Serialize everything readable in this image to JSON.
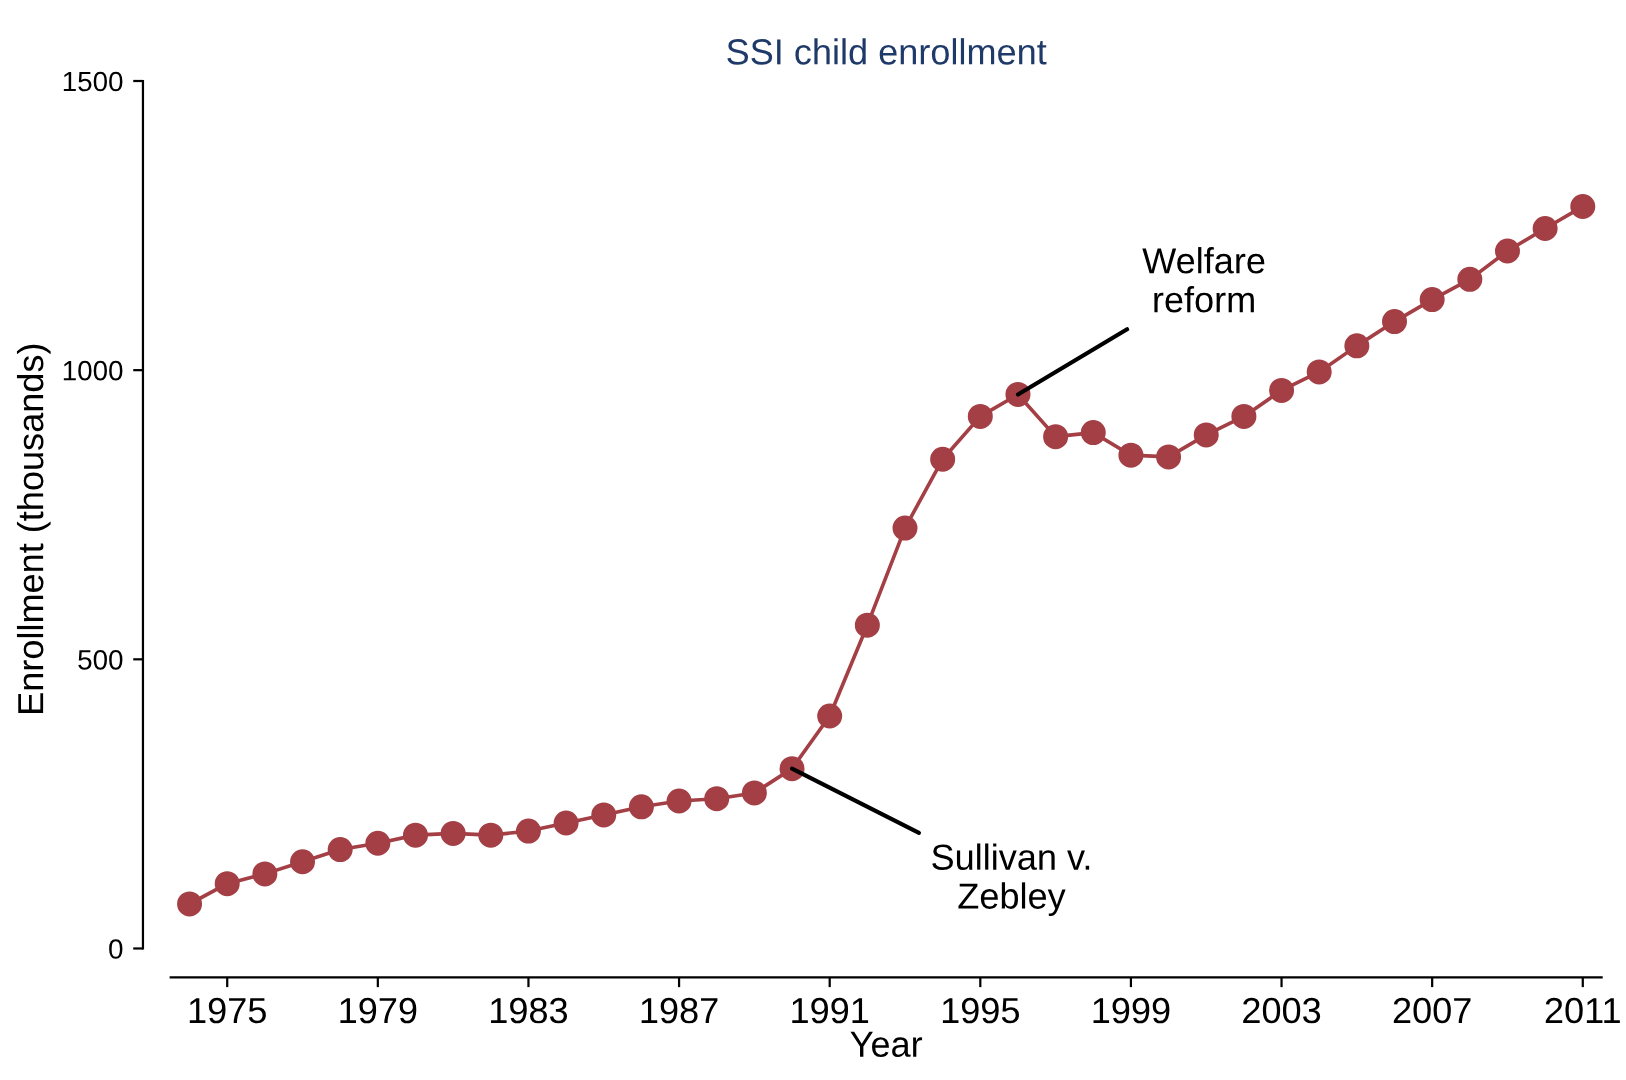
{
  "chart_data": {
    "type": "line",
    "title": "SSI child enrollment",
    "xlabel": "Year",
    "ylabel": "Enrollment (thousands)",
    "x": [
      1974,
      1975,
      1976,
      1977,
      1978,
      1979,
      1980,
      1981,
      1982,
      1983,
      1984,
      1985,
      1986,
      1987,
      1988,
      1989,
      1990,
      1991,
      1992,
      1993,
      1994,
      1995,
      1996,
      1997,
      1998,
      1999,
      2000,
      2001,
      2002,
      2003,
      2004,
      2005,
      2006,
      2007,
      2008,
      2009,
      2010,
      2011
    ],
    "series": [
      {
        "color": "#a33f45",
        "values": [
          77,
          112,
          129,
          150,
          171,
          182,
          196,
          199,
          196,
          203,
          217,
          231,
          245,
          255,
          259,
          269,
          311,
          402,
          559,
          727,
          846,
          920,
          958,
          885,
          892,
          853,
          850,
          888,
          920,
          965,
          997,
          1042,
          1084,
          1122,
          1157,
          1206,
          1245,
          1283
        ]
      }
    ],
    "xlim": [
      1973.5,
      2011.5
    ],
    "xticks": [
      1975,
      1979,
      1983,
      1987,
      1991,
      1995,
      1999,
      2003,
      2007,
      2011
    ],
    "ylim": [
      -50,
      1500
    ],
    "yticks": [
      0,
      500,
      1000,
      1500
    ],
    "grid": false,
    "legend": false,
    "marker": "circle",
    "line_style": "solid",
    "annotations": [
      {
        "text": "Welfare\nreform",
        "x": 1996,
        "y": 958
      },
      {
        "text": "Sullivan v.\nZebley",
        "x": 1990,
        "y": 311
      }
    ]
  }
}
